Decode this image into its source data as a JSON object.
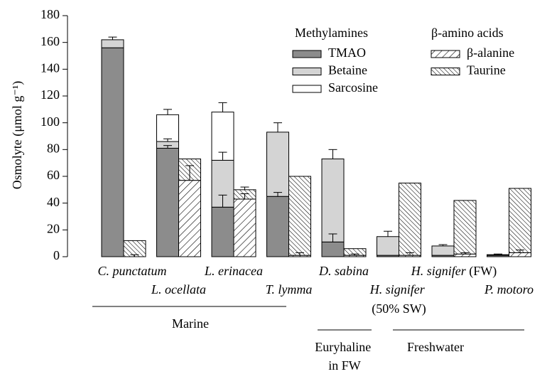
{
  "chart_data": {
    "type": "stacked-bar",
    "y_label": "Osmolyte (μmol g⁻¹)",
    "ylim": [
      0,
      180
    ],
    "yticks": [
      0,
      20,
      40,
      60,
      80,
      100,
      120,
      140,
      160,
      180
    ],
    "categories": [
      "C. punctatum",
      "L. ocellata",
      "L. erinacea",
      "T. lymma",
      "D. sabina",
      "H. signifer (50% SW)",
      "H. signifer (FW)",
      "P. motoro"
    ],
    "groups": [
      "Marine",
      "Euryhaline in FW",
      "Freshwater"
    ],
    "legend_groups": [
      "Methylamines",
      "β-amino acids"
    ],
    "series": [
      {
        "name": "TMAO",
        "stack": 0,
        "color": "#8c8c8c",
        "values": [
          156,
          81,
          37,
          45,
          11,
          1,
          1,
          1
        ],
        "errors": [
          null,
          2,
          9,
          3,
          6,
          null,
          null,
          null
        ]
      },
      {
        "name": "Betaine",
        "stack": 0,
        "color": "#d4d4d4",
        "values": [
          6,
          5,
          35,
          48,
          62,
          14,
          7,
          0.5
        ],
        "errors": [
          2,
          2,
          6,
          7,
          7,
          4,
          1,
          0.5
        ]
      },
      {
        "name": "Sarcosine",
        "stack": 0,
        "color": "#ffffff",
        "values": [
          0,
          20,
          36,
          0,
          0,
          0,
          0,
          0
        ],
        "errors": [
          null,
          4,
          7,
          null,
          null,
          null,
          null,
          null
        ]
      },
      {
        "name": "β-alanine",
        "stack": 1,
        "color": "#000000",
        "hatch": "forward",
        "values": [
          0,
          57,
          43,
          1,
          1,
          1,
          2,
          3
        ],
        "errors": [
          1.5,
          11,
          4,
          2,
          1,
          2,
          1,
          2
        ]
      },
      {
        "name": "Taurine",
        "stack": 1,
        "color": "#000000",
        "hatch": "backward",
        "values": [
          12,
          16,
          7,
          59,
          5,
          54,
          40,
          48
        ],
        "errors": [
          null,
          null,
          2,
          null,
          null,
          null,
          null,
          null
        ]
      }
    ]
  }
}
